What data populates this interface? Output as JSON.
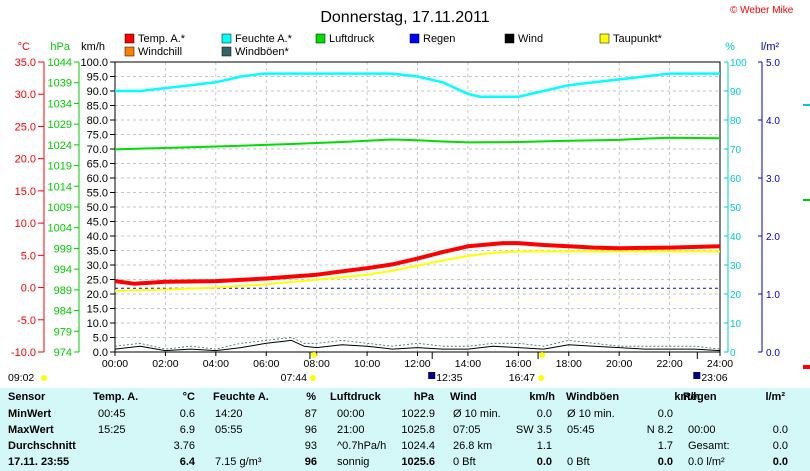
{
  "title": "Donnerstag, 17.11.2011",
  "copyright": "© Weber Mike",
  "legend": [
    {
      "label": "Temp. A.*",
      "color": "#ff0000"
    },
    {
      "label": "Feuchte A.*",
      "color": "#00ffff"
    },
    {
      "label": "Luftdruck",
      "color": "#00dd00"
    },
    {
      "label": "Regen",
      "color": "#0000ff"
    },
    {
      "label": "Wind",
      "color": "#000000"
    },
    {
      "label": "Taupunkt*",
      "color": "#ffff00"
    },
    {
      "label": "Windchill",
      "color": "#ff8000"
    },
    {
      "label": "Windböen*",
      "color": "#336666"
    }
  ],
  "axis_units": {
    "temp": "°C",
    "pressure": "hPa",
    "wind": "km/h",
    "humidity": "%",
    "rain": "l/m²"
  },
  "sun_times": {
    "sunrise": "07:44",
    "sunset": "16:47",
    "moonrise": "12:35",
    "moonset": "23:06",
    "left": "09:02"
  },
  "chart_data": {
    "type": "line",
    "title": "Donnerstag, 17.11.2011",
    "x_ticks": [
      "00:00",
      "02:00",
      "04:00",
      "06:00",
      "08:00",
      "10:00",
      "12:00",
      "14:00",
      "16:00",
      "18:00",
      "20:00",
      "22:00",
      "24:00"
    ],
    "x_unit": "hours",
    "axes": {
      "temp": {
        "label": "°C",
        "ticks": [
          "35.0",
          "30.0",
          "25.0",
          "20.0",
          "15.0",
          "10.0",
          "5.0",
          "0.0",
          "-5.0",
          "-10.0"
        ],
        "ylim": [
          -10,
          35
        ]
      },
      "pressure": {
        "label": "hPa",
        "ticks": [
          "1044",
          "1039",
          "1034",
          "1029",
          "1024",
          "1019",
          "1014",
          "1009",
          "1004",
          "999",
          "994",
          "989",
          "984",
          "979",
          "974"
        ],
        "ylim": [
          974,
          1044
        ]
      },
      "wind": {
        "label": "km/h",
        "ticks": [
          "100.0",
          "95.0",
          "90.0",
          "85.0",
          "80.0",
          "75.0",
          "70.0",
          "65.0",
          "60.0",
          "55.0",
          "50.0",
          "45.0",
          "40.0",
          "35.0",
          "30.0",
          "25.0",
          "20.0",
          "15.0",
          "10.0",
          "5.0",
          "0.0"
        ],
        "ylim": [
          0,
          100
        ]
      },
      "humidity": {
        "label": "%",
        "ticks": [
          "100",
          "90",
          "80",
          "70",
          "60",
          "50",
          "40",
          "30",
          "20",
          "10",
          "0"
        ],
        "ylim": [
          0,
          100
        ]
      },
      "rain": {
        "label": "l/m²",
        "ticks": [
          "5.0",
          "4.0",
          "3.0",
          "2.0",
          "1.0",
          "0.0"
        ],
        "ylim": [
          0,
          5
        ]
      }
    },
    "grid": true,
    "series": [
      {
        "name": "Temp. A.*",
        "axis": "temp",
        "color": "#ff0000",
        "x": [
          0,
          0.75,
          2,
          4,
          6,
          8,
          9,
          10,
          11,
          12,
          13,
          14,
          15.4,
          16,
          17,
          18,
          19,
          20,
          22,
          24
        ],
        "y": [
          1.0,
          0.6,
          0.9,
          1.0,
          1.4,
          2.0,
          2.5,
          3.0,
          3.6,
          4.5,
          5.5,
          6.4,
          6.9,
          6.9,
          6.6,
          6.4,
          6.2,
          6.1,
          6.2,
          6.4
        ]
      },
      {
        "name": "Feuchte A.*",
        "axis": "humidity",
        "color": "#00ffff",
        "x": [
          0,
          1,
          2,
          3,
          4,
          5,
          5.9,
          8,
          10,
          11,
          12,
          13,
          14,
          14.5,
          15,
          16,
          16.5,
          17,
          18,
          19,
          20,
          21,
          22,
          24
        ],
        "y": [
          90,
          90,
          91,
          92,
          93,
          95,
          96,
          96,
          96,
          96,
          95,
          93,
          89,
          88,
          88,
          88,
          89,
          90,
          92,
          93,
          94,
          95,
          96,
          96
        ]
      },
      {
        "name": "Luftdruck",
        "axis": "pressure",
        "color": "#00dd00",
        "x": [
          0,
          1,
          3,
          5,
          7,
          9,
          10,
          11,
          12,
          13,
          14,
          16,
          18,
          20,
          21,
          22,
          24
        ],
        "y": [
          1022.9,
          1023.1,
          1023.4,
          1023.8,
          1024.2,
          1024.7,
          1025.0,
          1025.3,
          1025.1,
          1024.8,
          1024.6,
          1024.7,
          1025.0,
          1025.2,
          1025.5,
          1025.7,
          1025.6
        ]
      },
      {
        "name": "Regen",
        "axis": "rain",
        "color": "#0000ff",
        "x": [
          0,
          24
        ],
        "y": [
          1.1,
          1.1
        ]
      },
      {
        "name": "Taupunkt*",
        "axis": "temp",
        "color": "#ffff00",
        "x": [
          0,
          2,
          4,
          6,
          8,
          10,
          11,
          12,
          13,
          14,
          15,
          16,
          18,
          20,
          22,
          24
        ],
        "y": [
          -0.5,
          -0.3,
          0.0,
          0.5,
          1.2,
          2.0,
          2.6,
          3.4,
          4.2,
          4.9,
          5.4,
          5.6,
          5.6,
          5.6,
          5.6,
          5.6
        ]
      },
      {
        "name": "Wind",
        "axis": "wind",
        "color": "#000000",
        "x": [
          0,
          1,
          2,
          3,
          4,
          5,
          6,
          7,
          7.5,
          8,
          9,
          10,
          11,
          12,
          13,
          14,
          15,
          16,
          17,
          18,
          19,
          20,
          21,
          22,
          23,
          24
        ],
        "y": [
          1,
          2,
          0.5,
          1,
          0.5,
          1.5,
          3,
          4,
          2,
          1.5,
          2.5,
          2,
          1,
          1.5,
          1,
          1,
          2,
          1.5,
          1,
          2.5,
          2,
          1.5,
          1,
          1,
          1,
          0.5
        ]
      },
      {
        "name": "Windböen*",
        "axis": "wind",
        "color": "#336666",
        "x": [
          0,
          1,
          2,
          3,
          4,
          5,
          6,
          7,
          7.5,
          8,
          9,
          10,
          11,
          12,
          13,
          14,
          15,
          16,
          17,
          18,
          19,
          20,
          21,
          22,
          23,
          24
        ],
        "y": [
          2,
          3,
          1,
          2,
          1,
          3,
          4,
          5,
          3,
          3,
          4,
          3,
          2,
          3,
          2,
          2,
          3,
          3,
          2,
          4,
          3,
          2,
          2,
          2,
          2,
          1
        ]
      }
    ]
  },
  "table": {
    "headers": [
      "Sensor",
      "Temp. A.",
      "°C",
      "Feuchte A.",
      "%",
      "Luftdruck",
      "hPa",
      "Wind",
      "km/h",
      "Windböen",
      "km/h",
      "Regen",
      "l/m²"
    ],
    "row_labels": [
      "MinWert",
      "MaxWert",
      "Durchschnitt",
      "17.11. 23:55"
    ],
    "rows": [
      [
        "00:45",
        "0.6",
        "14:20",
        "87",
        "00:00",
        "1022.9",
        "Ø 10 min.",
        "0.0",
        "Ø 10 min.",
        "0.0",
        "",
        ""
      ],
      [
        "15:25",
        "6.9",
        "05:55",
        "96",
        "21:00",
        "1025.8",
        "07:05",
        "SW 3.5",
        "05:45",
        "N 8.2",
        "00:00",
        "0.0"
      ],
      [
        "",
        "3.76",
        "",
        "93",
        "^0.7hPa/h",
        "1024.4",
        "26.8 km",
        "1.1",
        "",
        "1.7",
        "Gesamt:",
        "0.0"
      ],
      [
        "",
        "6.4",
        "7.15 g/m³",
        "96",
        "sonnig",
        "1025.6",
        "0 Bft",
        "0.0",
        "0 Bft",
        "0.0",
        "0.0 l/m²",
        "0.0"
      ]
    ]
  }
}
